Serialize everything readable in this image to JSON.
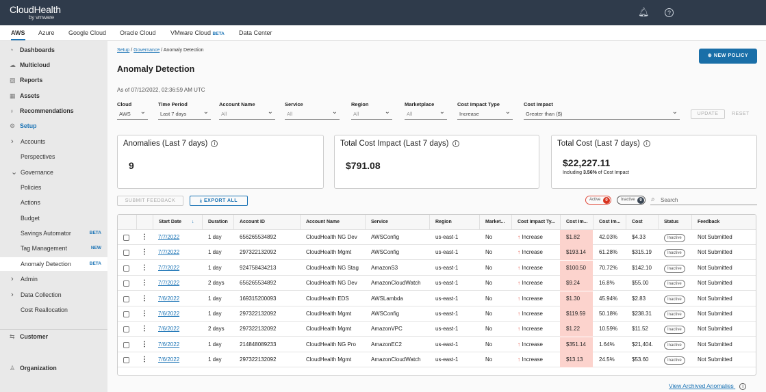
{
  "app": {
    "logo": "CloudHealth",
    "logo_sub": "by vmware"
  },
  "tabs": [
    {
      "label": "AWS"
    },
    {
      "label": "Azure"
    },
    {
      "label": "Google Cloud"
    },
    {
      "label": "Oracle Cloud"
    },
    {
      "label": "VMware Cloud",
      "badge": "BETA"
    },
    {
      "label": "Data Center"
    }
  ],
  "sidebar": {
    "items": [
      {
        "label": "Dashboards",
        "icon": "gauge"
      },
      {
        "label": "Multicloud",
        "icon": "clouds"
      },
      {
        "label": "Reports",
        "icon": "chart"
      },
      {
        "label": "Assets",
        "icon": "grid"
      },
      {
        "label": "Recommendations",
        "icon": "bulb"
      },
      {
        "label": "Setup",
        "icon": "gear"
      },
      {
        "label": "Accounts",
        "chevron": "right"
      },
      {
        "label": "Perspectives"
      },
      {
        "label": "Governance",
        "chevron": "down"
      },
      {
        "label": "Policies"
      },
      {
        "label": "Actions"
      },
      {
        "label": "Budget"
      },
      {
        "label": "Savings Automator",
        "badge": "BETA"
      },
      {
        "label": "Tag Management",
        "badge": "NEW"
      },
      {
        "label": "Anomaly Detection",
        "badge": "BETA"
      },
      {
        "label": "Admin",
        "chevron": "right"
      },
      {
        "label": "Data Collection",
        "chevron": "right"
      },
      {
        "label": "Cost Reallocation"
      },
      {
        "label": "Customer",
        "icon": "swap"
      },
      {
        "label": "Organization",
        "icon": "org"
      }
    ]
  },
  "breadcrumb": {
    "setup": "Setup",
    "governance": "Governance",
    "current": "Anomaly Detection",
    "sep": "/"
  },
  "page": {
    "title": "Anomaly Detection",
    "as_of": "As of 07/12/2022, 02:36:59 AM UTC",
    "new_policy": "NEW POLICY"
  },
  "filters": [
    {
      "label": "Cloud",
      "value": "AWS"
    },
    {
      "label": "Time Period",
      "value": "Last 7 days"
    },
    {
      "label": "Account Name",
      "value": "All"
    },
    {
      "label": "Service",
      "value": "All"
    },
    {
      "label": "Region",
      "value": "All"
    },
    {
      "label": "Marketplace",
      "value": "All"
    },
    {
      "label": "Cost Impact Type",
      "value": "Increase"
    },
    {
      "label": "Cost Impact",
      "value": "Greater than ($)"
    }
  ],
  "filter_actions": {
    "update": "UPDATE",
    "reset": "RESET"
  },
  "cards": [
    {
      "title": "Anomalies (Last 7 days)",
      "value": "9"
    },
    {
      "title": "Total Cost Impact (Last 7 days)",
      "value": "$791.08"
    },
    {
      "title": "Total Cost (Last 7 days)",
      "value": "$22,227.11",
      "sub_pre": "Including ",
      "sub_pct": "3.56%",
      "sub_post": " of Cost Impact"
    }
  ],
  "toolbar": {
    "submit_feedback": "SUBMIT FEEDBACK",
    "export_all": "EXPORT ALL",
    "active_label": "Active",
    "active_count": "0",
    "inactive_label": "Inactive",
    "inactive_count": "9",
    "search_placeholder": "Search"
  },
  "table": {
    "columns": [
      "Start Date",
      "Duration",
      "Account ID",
      "Account Name",
      "Service",
      "Region",
      "Market...",
      "Cost Impact Ty...",
      "Cost Im...",
      "Cost Im...",
      "Cost",
      "Status",
      "Feedback"
    ],
    "rows": [
      [
        "7/7/2022",
        "1 day",
        "656265534892",
        "CloudHealth NG Dev",
        "AWSConfig",
        "us-east-1",
        "No",
        "Increase",
        "$1.82",
        "42.03%",
        "$4.33",
        "Inactive",
        "Not Submitted"
      ],
      [
        "7/7/2022",
        "1 day",
        "297322132092",
        "CloudHealth Mgmt",
        "AWSConfig",
        "us-east-1",
        "No",
        "Increase",
        "$193.14",
        "61.28%",
        "$315.19",
        "Inactive",
        "Not Submitted"
      ],
      [
        "7/7/2022",
        "1 day",
        "924758434213",
        "CloudHealth NG Stag",
        "AmazonS3",
        "us-east-1",
        "No",
        "Increase",
        "$100.50",
        "70.72%",
        "$142.10",
        "Inactive",
        "Not Submitted"
      ],
      [
        "7/7/2022",
        "2 days",
        "656265534892",
        "CloudHealth NG Dev",
        "AmazonCloudWatch",
        "us-east-1",
        "No",
        "Increase",
        "$9.24",
        "16.8%",
        "$55.00",
        "Inactive",
        "Not Submitted"
      ],
      [
        "7/6/2022",
        "1 day",
        "169315200093",
        "CloudHealth EDS",
        "AWSLambda",
        "us-east-1",
        "No",
        "Increase",
        "$1.30",
        "45.94%",
        "$2.83",
        "Inactive",
        "Not Submitted"
      ],
      [
        "7/6/2022",
        "1 day",
        "297322132092",
        "CloudHealth Mgmt",
        "AWSConfig",
        "us-east-1",
        "No",
        "Increase",
        "$119.59",
        "50.18%",
        "$238.31",
        "Inactive",
        "Not Submitted"
      ],
      [
        "7/6/2022",
        "2 days",
        "297322132092",
        "CloudHealth Mgmt",
        "AmazonVPC",
        "us-east-1",
        "No",
        "Increase",
        "$1.22",
        "10.59%",
        "$11.52",
        "Inactive",
        "Not Submitted"
      ],
      [
        "7/6/2022",
        "1 day",
        "214848089233",
        "CloudHealth NG Pro",
        "AmazonEC2",
        "us-east-1",
        "No",
        "Increase",
        "$351.14",
        "1.64%",
        "$21,404.",
        "Inactive",
        "Not Submitted"
      ],
      [
        "7/6/2022",
        "1 day",
        "297322132092",
        "CloudHealth Mgmt",
        "AmazonCloudWatch",
        "us-east-1",
        "No",
        "Increase",
        "$13.13",
        "24.5%",
        "$53.60",
        "Inactive",
        "Not Submitted"
      ]
    ]
  },
  "footer": {
    "archived": "View Archived Anomalies"
  },
  "colors": {
    "topbar": "#2f3b4b",
    "accent": "#1a73b5",
    "impact_bg": "#fcd3cd",
    "increase": "#e04a3b"
  }
}
